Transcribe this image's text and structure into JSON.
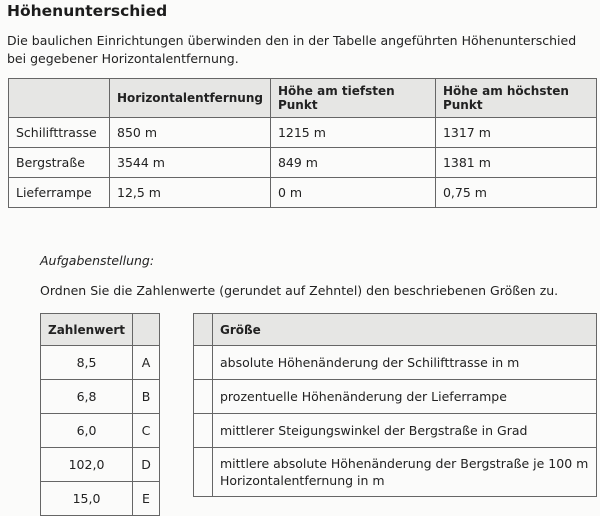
{
  "title": "Höhenunterschied",
  "intro": "Die baulichen Einrichtungen überwinden den in der Tabelle angeführten Höhenunterschied bei gegebener Horizontalentfernung.",
  "table1": {
    "headers": [
      "",
      "Horizontalentfernung",
      "Höhe am tiefsten Punkt",
      "Höhe am höchsten Punkt"
    ],
    "rows": [
      [
        "Schilifttrasse",
        "850 m",
        "1215 m",
        "1317 m"
      ],
      [
        "Bergstraße",
        "3544 m",
        "849 m",
        "1381 m"
      ],
      [
        "Lieferrampe",
        "12,5 m",
        "0 m",
        "0,75 m"
      ]
    ]
  },
  "task_label": "Aufgabenstellung:",
  "instruction": "Ordnen Sie die Zahlenwerte (gerundet auf Zehntel) den beschriebenen Größen zu.",
  "values_table": {
    "header": "Zahlenwert",
    "rows": [
      [
        "8,5",
        "A"
      ],
      [
        "6,8",
        "B"
      ],
      [
        "6,0",
        "C"
      ],
      [
        "102,0",
        "D"
      ],
      [
        "15,0",
        "E"
      ]
    ]
  },
  "quantities_table": {
    "header": "Größe",
    "rows": [
      "absolute Höhenänderung der Schilifttrasse in m",
      "prozentuelle Höhenänderung der Lieferrampe",
      "mittlerer Steigungswinkel der Bergstraße in Grad",
      "mittlere absolute Höhenänderung der Bergstraße je 100 m Horizontalentfernung in m"
    ]
  }
}
